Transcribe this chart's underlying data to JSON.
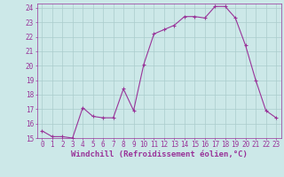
{
  "x": [
    0,
    1,
    2,
    3,
    4,
    5,
    6,
    7,
    8,
    9,
    10,
    11,
    12,
    13,
    14,
    15,
    16,
    17,
    18,
    19,
    20,
    21,
    22,
    23
  ],
  "y": [
    15.5,
    15.1,
    15.1,
    15.0,
    17.1,
    16.5,
    16.4,
    16.4,
    18.4,
    16.9,
    20.1,
    22.2,
    22.5,
    22.8,
    23.4,
    23.4,
    23.3,
    24.1,
    24.1,
    23.3,
    21.4,
    19.0,
    16.9,
    16.4
  ],
  "ylim": [
    15,
    24
  ],
  "xlim": [
    -0.5,
    23.5
  ],
  "yticks": [
    15,
    16,
    17,
    18,
    19,
    20,
    21,
    22,
    23,
    24
  ],
  "xticks": [
    0,
    1,
    2,
    3,
    4,
    5,
    6,
    7,
    8,
    9,
    10,
    11,
    12,
    13,
    14,
    15,
    16,
    17,
    18,
    19,
    20,
    21,
    22,
    23
  ],
  "line_color": "#993399",
  "marker": "+",
  "bg_color": "#cce8e8",
  "grid_color": "#aacccc",
  "xlabel": "Windchill (Refroidissement éolien,°C)",
  "xlabel_color": "#993399",
  "tick_color": "#993399",
  "axis_color": "#993399",
  "tick_fontsize": 5.5,
  "xlabel_fontsize": 6.5
}
